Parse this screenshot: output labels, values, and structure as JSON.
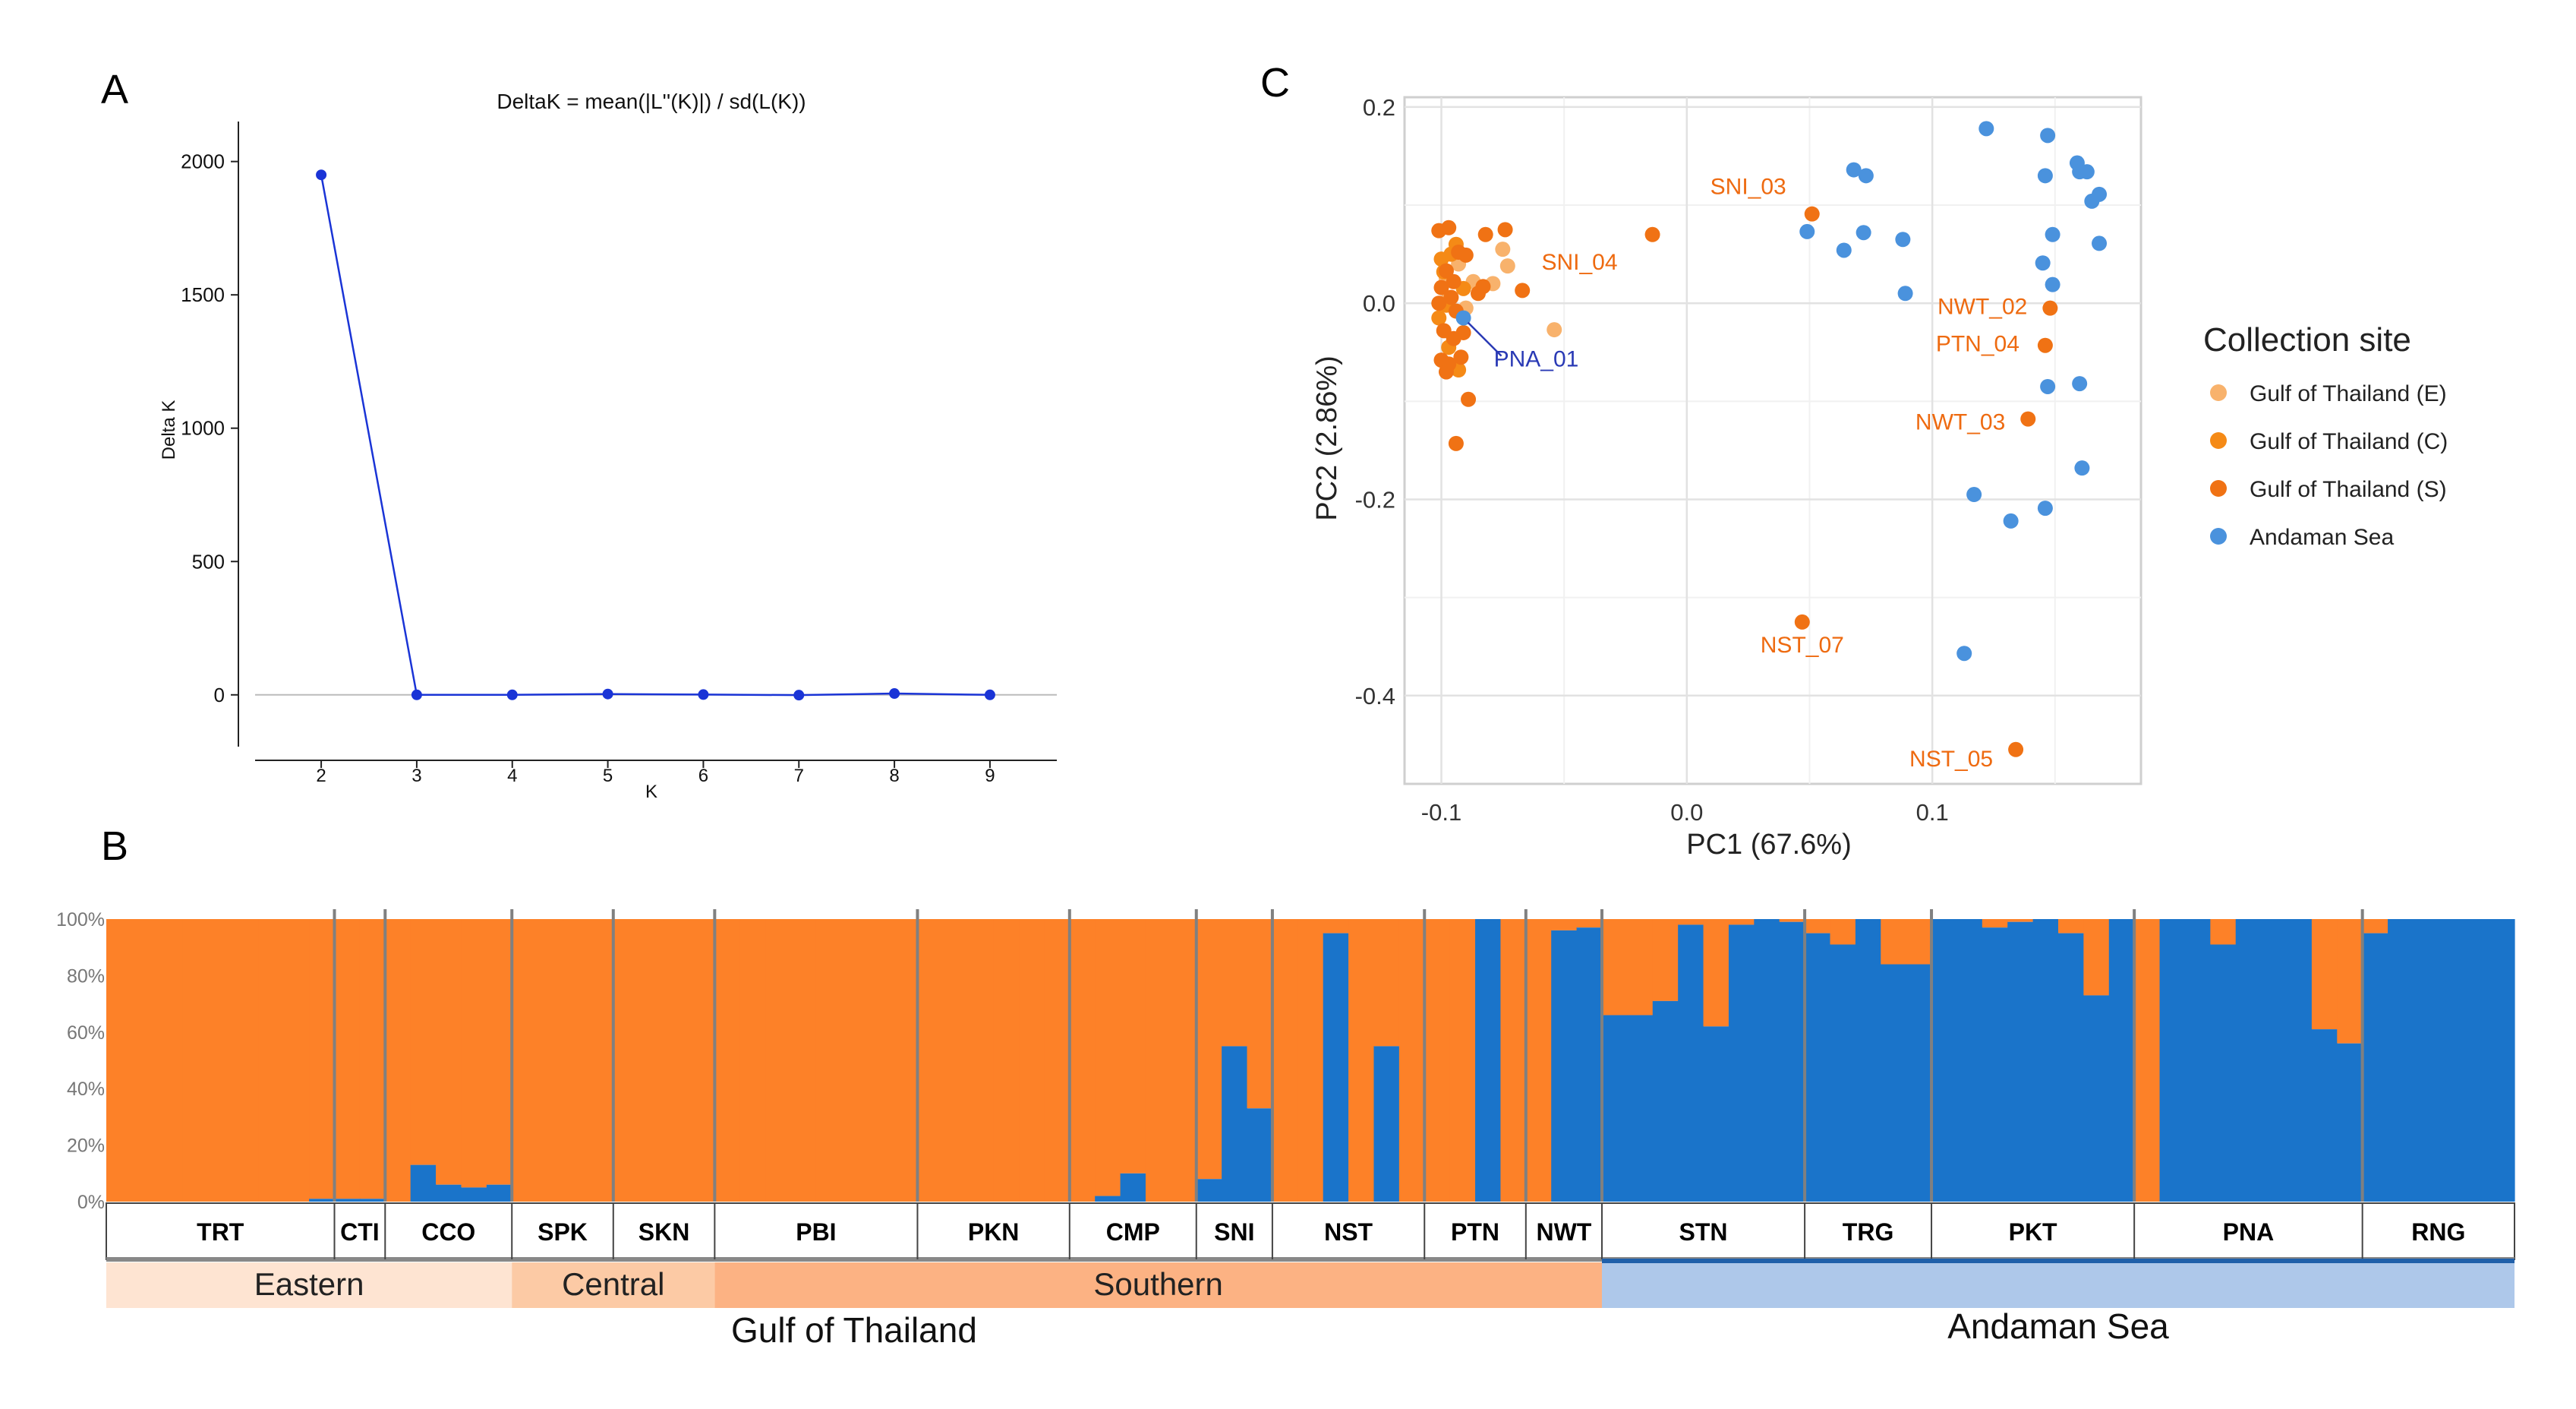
{
  "chart_data": [
    {
      "panel": "A",
      "type": "line",
      "title": "DeltaK = mean(|L''(K)|) / sd(L(K))",
      "xlabel": "K",
      "ylabel": "Delta K",
      "x": [
        2,
        3,
        4,
        5,
        6,
        7,
        8,
        9
      ],
      "values": [
        1950,
        0,
        0,
        3,
        1,
        -1,
        5,
        0
      ],
      "xticks": [
        "2",
        "3",
        "4",
        "5",
        "6",
        "7",
        "8",
        "9"
      ],
      "yticks": [
        "0",
        "500",
        "1000",
        "1500",
        "2000"
      ],
      "xlim": [
        1.3,
        9.7
      ],
      "ylim": [
        -200,
        2150
      ],
      "color": "#1a34d6"
    },
    {
      "panel": "C",
      "type": "scatter",
      "xlabel": "PC1 (67.6%)",
      "ylabel": "PC2 (2.86%)",
      "xlim": [
        -0.115,
        0.185
      ],
      "ylim": [
        -0.49,
        0.21
      ],
      "xticks": [
        "-0.1",
        "0.0",
        "0.1"
      ],
      "xtick_values": [
        -0.1,
        0.0,
        0.1
      ],
      "yticks": [
        "0.2",
        "0.0",
        "-0.2",
        "-0.4"
      ],
      "ytick_values": [
        0.2,
        0.0,
        -0.2,
        -0.4
      ],
      "legend_title": "Collection site",
      "series": [
        {
          "name": "Gulf of Thailand (E)",
          "color": "#f8b26c",
          "points": [
            [
              -0.075,
              0.055
            ],
            [
              -0.073,
              0.038
            ],
            [
              -0.079,
              0.02
            ],
            [
              -0.087,
              0.022
            ],
            [
              -0.054,
              -0.027
            ],
            [
              -0.09,
              -0.005
            ],
            [
              -0.098,
              0.025
            ],
            [
              -0.095,
              -0.065
            ],
            [
              -0.097,
              0.005
            ],
            [
              -0.093,
              0.04
            ]
          ]
        },
        {
          "name": "Gulf of Thailand (C)",
          "color": "#f58a16",
          "points": [
            [
              -0.1,
              0.045
            ],
            [
              -0.096,
              0.05
            ],
            [
              -0.094,
              0.06
            ],
            [
              -0.099,
              0.032
            ],
            [
              -0.101,
              -0.015
            ],
            [
              -0.097,
              -0.045
            ],
            [
              -0.093,
              -0.068
            ],
            [
              -0.091,
              0.015
            ],
            [
              -0.098,
              -0.002
            ]
          ]
        },
        {
          "name": "Gulf of Thailand (S)",
          "color": "#f07214",
          "points": [
            [
              -0.101,
              0.074
            ],
            [
              -0.097,
              0.077
            ],
            [
              -0.093,
              0.052
            ],
            [
              -0.09,
              0.049
            ],
            [
              -0.098,
              0.033
            ],
            [
              -0.095,
              0.022
            ],
            [
              -0.1,
              0.016
            ],
            [
              -0.096,
              0.006
            ],
            [
              -0.101,
              0.0
            ],
            [
              -0.094,
              -0.008
            ],
            [
              -0.099,
              -0.028
            ],
            [
              -0.095,
              -0.036
            ],
            [
              -0.1,
              -0.058
            ],
            [
              -0.097,
              -0.062
            ],
            [
              -0.092,
              -0.055
            ],
            [
              -0.098,
              -0.07
            ],
            [
              -0.091,
              -0.03
            ],
            [
              -0.089,
              -0.098
            ],
            [
              -0.094,
              -0.143
            ],
            [
              -0.085,
              0.01
            ],
            [
              -0.083,
              0.017
            ],
            [
              -0.082,
              0.07
            ],
            [
              -0.074,
              0.075
            ],
            [
              -0.067,
              0.013
            ],
            [
              -0.014,
              0.07
            ],
            [
              0.051,
              0.091
            ],
            [
              0.047,
              -0.325
            ],
            [
              0.148,
              -0.005
            ],
            [
              0.146,
              -0.043
            ],
            [
              0.139,
              -0.118
            ],
            [
              0.134,
              -0.455
            ]
          ]
        },
        {
          "name": "Andaman Sea",
          "color": "#4a92dd",
          "points": [
            [
              -0.091,
              -0.015
            ],
            [
              0.122,
              0.178
            ],
            [
              0.147,
              0.171
            ],
            [
              0.068,
              0.136
            ],
            [
              0.073,
              0.13
            ],
            [
              0.146,
              0.13
            ],
            [
              0.159,
              0.143
            ],
            [
              0.16,
              0.134
            ],
            [
              0.163,
              0.134
            ],
            [
              0.168,
              0.111
            ],
            [
              0.165,
              0.104
            ],
            [
              0.049,
              0.073
            ],
            [
              0.072,
              0.072
            ],
            [
              0.064,
              0.054
            ],
            [
              0.088,
              0.065
            ],
            [
              0.149,
              0.07
            ],
            [
              0.145,
              0.041
            ],
            [
              0.149,
              0.019
            ],
            [
              0.168,
              0.061
            ],
            [
              0.089,
              0.01
            ],
            [
              0.147,
              -0.085
            ],
            [
              0.16,
              -0.082
            ],
            [
              0.117,
              -0.195
            ],
            [
              0.132,
              -0.222
            ],
            [
              0.146,
              -0.209
            ],
            [
              0.161,
              -0.168
            ],
            [
              0.113,
              -0.357
            ]
          ]
        }
      ],
      "annotations": [
        {
          "text": "SNI_03",
          "x": 0.051,
          "y": 0.091,
          "color": "#ee6a10"
        },
        {
          "text": "SNI_04",
          "x": -0.014,
          "y": 0.07,
          "color": "#ee6a10"
        },
        {
          "text": "NWT_02",
          "x": 0.148,
          "y": -0.005,
          "color": "#ee6a10"
        },
        {
          "text": "PTN_04",
          "x": 0.146,
          "y": -0.043,
          "color": "#ee6a10"
        },
        {
          "text": "NWT_03",
          "x": 0.139,
          "y": -0.118,
          "color": "#ee6a10"
        },
        {
          "text": "NST_07",
          "x": 0.047,
          "y": -0.325,
          "color": "#ee6a10"
        },
        {
          "text": "NST_05",
          "x": 0.134,
          "y": -0.455,
          "color": "#ee6a10"
        },
        {
          "text": "PNA_01",
          "x": -0.091,
          "y": -0.015,
          "color": "#2a3ab5"
        }
      ]
    },
    {
      "panel": "B",
      "type": "bar",
      "stacked": true,
      "title": "",
      "ylabel": "",
      "yticks": [
        "100%",
        "80%",
        "60%",
        "40%",
        "20%",
        "0%"
      ],
      "series_colors": {
        "cluster_orange": "#fd8128",
        "cluster_blue": "#1a74ca"
      },
      "populations": [
        {
          "name": "TRT",
          "blue": [
            0,
            0,
            0,
            0,
            0,
            0,
            0,
            0,
            1
          ]
        },
        {
          "name": "CTI",
          "blue": [
            1,
            1
          ]
        },
        {
          "name": "CCO",
          "blue": [
            0,
            13,
            6,
            5,
            6
          ]
        },
        {
          "name": "SPK",
          "blue": [
            0,
            0,
            0,
            0
          ]
        },
        {
          "name": "SKN",
          "blue": [
            0,
            0,
            0,
            0
          ]
        },
        {
          "name": "PBI",
          "blue": [
            0,
            0,
            0,
            0,
            0,
            0,
            0,
            0
          ]
        },
        {
          "name": "PKN",
          "blue": [
            0,
            0,
            0,
            0,
            0,
            0
          ]
        },
        {
          "name": "CMP",
          "blue": [
            0,
            2,
            10,
            0,
            0
          ]
        },
        {
          "name": "SNI",
          "blue": [
            8,
            55,
            33
          ]
        },
        {
          "name": "NST",
          "blue": [
            0,
            0,
            95,
            0,
            55,
            0
          ]
        },
        {
          "name": "PTN",
          "blue": [
            0,
            0,
            100,
            0
          ]
        },
        {
          "name": "NWT",
          "blue": [
            0,
            96,
            97
          ]
        },
        {
          "name": "STN",
          "blue": [
            66,
            66,
            71,
            98,
            62,
            98,
            100,
            99
          ]
        },
        {
          "name": "TRG",
          "blue": [
            95,
            91,
            100,
            84,
            84
          ]
        },
        {
          "name": "PKT",
          "blue": [
            100,
            100,
            97,
            99,
            100,
            95,
            73,
            100
          ]
        },
        {
          "name": "PNA",
          "blue": [
            0,
            100,
            100,
            91,
            100,
            100,
            100,
            61,
            56
          ]
        },
        {
          "name": "RNG",
          "blue": [
            95,
            100,
            100,
            100,
            100,
            100
          ]
        }
      ],
      "regions": [
        {
          "name": "Eastern",
          "color": "#fee4d2"
        },
        {
          "name": "Central",
          "color": "#fccaa5"
        },
        {
          "name": "Southern",
          "color": "#fcb283"
        },
        {
          "name": "",
          "color": "#aec8ea"
        }
      ],
      "seas": [
        {
          "name": "Gulf of Thailand"
        },
        {
          "name": "Andaman Sea"
        }
      ]
    }
  ],
  "panel_labels": {
    "a": "A",
    "b": "B",
    "c": "C"
  }
}
